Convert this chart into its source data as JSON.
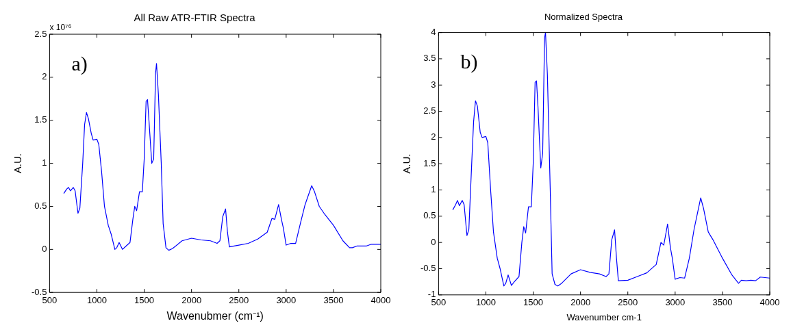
{
  "chart_data": [
    {
      "type": "line",
      "title": "All Raw ATR-FTIR Spectra",
      "xlabel": "Wavenubmer (cm⁻¹)",
      "ylabel": "A.U.",
      "annotations": [
        "a)",
        "x 10⁷⁶"
      ],
      "xlim": [
        500,
        4000
      ],
      "xticks": [
        500,
        1000,
        1500,
        2000,
        2500,
        3000,
        3500,
        4000
      ],
      "ylim": [
        -0.5,
        2.5
      ],
      "yticks": [
        -0.5,
        0,
        0.5,
        1,
        1.5,
        2,
        2.5
      ],
      "grid": false,
      "legend": false,
      "marker": "none",
      "line_style": "solid",
      "series": [
        {
          "color": "#0000ff",
          "x": [
            650,
            680,
            700,
            720,
            750,
            770,
            800,
            820,
            850,
            870,
            890,
            910,
            940,
            960,
            1000,
            1020,
            1050,
            1080,
            1120,
            1150,
            1190,
            1210,
            1235,
            1270,
            1300,
            1350,
            1380,
            1400,
            1420,
            1450,
            1480,
            1500,
            1520,
            1535,
            1550,
            1580,
            1600,
            1620,
            1630,
            1650,
            1680,
            1700,
            1730,
            1760,
            1800,
            1900,
            2000,
            2100,
            2200,
            2270,
            2300,
            2330,
            2360,
            2380,
            2400,
            2500,
            2600,
            2700,
            2800,
            2850,
            2880,
            2920,
            2950,
            2970,
            3000,
            3050,
            3100,
            3150,
            3200,
            3270,
            3300,
            3350,
            3400,
            3500,
            3600,
            3670,
            3700,
            3750,
            3800,
            3850,
            3900,
            4000
          ],
          "values": [
            0.65,
            0.7,
            0.72,
            0.68,
            0.72,
            0.68,
            0.42,
            0.48,
            1.0,
            1.45,
            1.59,
            1.52,
            1.35,
            1.27,
            1.28,
            1.22,
            0.9,
            0.5,
            0.28,
            0.18,
            0.0,
            0.02,
            0.08,
            0.0,
            0.03,
            0.08,
            0.35,
            0.5,
            0.45,
            0.67,
            0.67,
            1.05,
            1.72,
            1.74,
            1.5,
            1.0,
            1.05,
            2.05,
            2.16,
            1.8,
            1.0,
            0.3,
            0.02,
            -0.01,
            0.01,
            0.1,
            0.13,
            0.11,
            0.1,
            0.07,
            0.1,
            0.38,
            0.47,
            0.2,
            0.03,
            0.05,
            0.07,
            0.12,
            0.2,
            0.36,
            0.35,
            0.52,
            0.35,
            0.25,
            0.05,
            0.07,
            0.07,
            0.3,
            0.52,
            0.74,
            0.67,
            0.5,
            0.42,
            0.28,
            0.1,
            0.02,
            0.02,
            0.04,
            0.04,
            0.04,
            0.06,
            0.06
          ]
        }
      ]
    },
    {
      "type": "line",
      "title": "Normalized Spectra",
      "xlabel": "Wavenumber cm-1",
      "ylabel": "A.U.",
      "annotations": [
        "b)"
      ],
      "xlim": [
        500,
        4000
      ],
      "xticks": [
        500,
        1000,
        1500,
        2000,
        2500,
        3000,
        3500,
        4000
      ],
      "ylim": [
        -1,
        4
      ],
      "yticks": [
        -1,
        -0.5,
        0,
        0.5,
        1,
        1.5,
        2,
        2.5,
        3,
        3.5,
        4
      ],
      "grid": false,
      "legend": false,
      "marker": "none",
      "line_style": "solid",
      "series": [
        {
          "color": "#0000ff",
          "x": [
            650,
            680,
            700,
            720,
            750,
            770,
            800,
            820,
            850,
            870,
            890,
            910,
            940,
            960,
            1000,
            1020,
            1050,
            1080,
            1120,
            1150,
            1190,
            1210,
            1235,
            1270,
            1300,
            1350,
            1380,
            1400,
            1420,
            1450,
            1480,
            1500,
            1520,
            1535,
            1550,
            1580,
            1600,
            1620,
            1630,
            1650,
            1680,
            1700,
            1730,
            1760,
            1800,
            1900,
            2000,
            2100,
            2200,
            2270,
            2300,
            2330,
            2360,
            2380,
            2400,
            2500,
            2600,
            2700,
            2800,
            2850,
            2880,
            2920,
            2950,
            2970,
            3000,
            3050,
            3100,
            3150,
            3200,
            3270,
            3300,
            3350,
            3400,
            3500,
            3600,
            3670,
            3700,
            3750,
            3800,
            3850,
            3900,
            4000
          ],
          "values": [
            0.62,
            0.72,
            0.8,
            0.7,
            0.8,
            0.72,
            0.13,
            0.25,
            1.5,
            2.3,
            2.7,
            2.6,
            2.1,
            2.0,
            2.02,
            1.9,
            1.0,
            0.2,
            -0.3,
            -0.5,
            -0.83,
            -0.78,
            -0.62,
            -0.82,
            -0.75,
            -0.65,
            0.0,
            0.3,
            0.18,
            0.68,
            0.68,
            1.5,
            3.05,
            3.08,
            2.6,
            1.42,
            1.7,
            3.9,
            4.0,
            3.2,
            1.0,
            -0.6,
            -0.8,
            -0.83,
            -0.78,
            -0.6,
            -0.52,
            -0.57,
            -0.6,
            -0.65,
            -0.6,
            0.05,
            0.24,
            -0.3,
            -0.73,
            -0.72,
            -0.65,
            -0.58,
            -0.42,
            0.0,
            -0.05,
            0.35,
            -0.1,
            -0.3,
            -0.7,
            -0.67,
            -0.68,
            -0.3,
            0.25,
            0.85,
            0.65,
            0.2,
            0.05,
            -0.3,
            -0.62,
            -0.78,
            -0.72,
            -0.73,
            -0.72,
            -0.73,
            -0.66,
            -0.68
          ]
        }
      ]
    }
  ]
}
